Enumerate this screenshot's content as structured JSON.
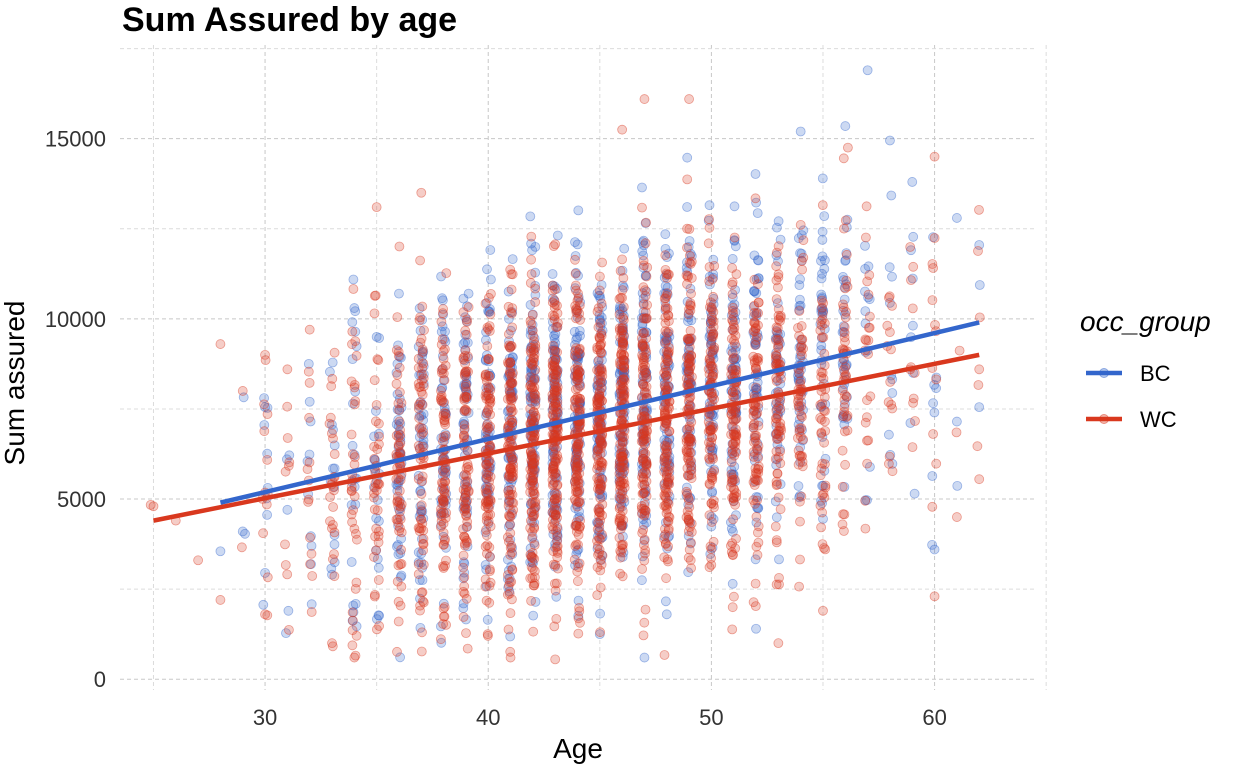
{
  "chart_data": {
    "type": "scatter",
    "title": "Sum Assured by age",
    "xlabel": "Age",
    "ylabel": "Sum assured",
    "xlim": [
      23.5,
      64.5
    ],
    "ylim": [
      -300,
      17600
    ],
    "x_ticks": [
      30,
      40,
      50,
      60
    ],
    "x_tick_labels": [
      "30",
      "40",
      "50",
      "60"
    ],
    "y_ticks": [
      0,
      5000,
      10000,
      15000
    ],
    "y_tick_labels": [
      "0",
      "5000",
      "10000",
      "15000"
    ],
    "grid": true,
    "legend": {
      "title": "occ_group",
      "placement": "right",
      "entries": [
        "BC",
        "WC"
      ]
    },
    "series": [
      {
        "name": "BC",
        "color": "#3366cc",
        "point_opacity": 0.25,
        "age_range": [
          28,
          62
        ],
        "trend": {
          "x": [
            28,
            62
          ],
          "y": [
            4900,
            9900
          ]
        },
        "points": [
          [
            28,
            3550
          ],
          [
            29,
            4100
          ],
          [
            30,
            2950
          ],
          [
            30,
            7550
          ],
          [
            31,
            4700
          ],
          [
            32,
            7700
          ],
          [
            33,
            2900
          ],
          [
            34,
            10300
          ],
          [
            35,
            9500
          ],
          [
            36,
            10700
          ],
          [
            57,
            16900
          ],
          [
            54,
            15200
          ],
          [
            56,
            15350
          ],
          [
            58,
            14950
          ],
          [
            61,
            12800
          ],
          [
            62,
            12050
          ],
          [
            62,
            7550
          ],
          [
            61,
            7150
          ],
          [
            60,
            3600
          ],
          [
            59,
            13800
          ],
          [
            47,
            600
          ],
          [
            45,
            1250
          ],
          [
            52,
            1400
          ],
          [
            48,
            1800
          ]
        ]
      },
      {
        "name": "WC",
        "color": "#d9381e",
        "point_opacity": 0.25,
        "age_range": [
          25,
          62
        ],
        "trend": {
          "x": [
            25,
            62
          ],
          "y": [
            4400,
            9000
          ]
        },
        "points": [
          [
            25,
            4800
          ],
          [
            26,
            4400
          ],
          [
            27,
            3300
          ],
          [
            28,
            9300
          ],
          [
            28,
            2200
          ],
          [
            29,
            8000
          ],
          [
            30,
            9000
          ],
          [
            30,
            1800
          ],
          [
            31,
            8600
          ],
          [
            32,
            9700
          ],
          [
            33,
            1000
          ],
          [
            34,
            600
          ],
          [
            35,
            13100
          ],
          [
            37,
            13500
          ],
          [
            47,
            16100
          ],
          [
            49,
            16100
          ],
          [
            46,
            15250
          ],
          [
            60,
            14500
          ],
          [
            62,
            8600
          ],
          [
            62,
            5550
          ],
          [
            61,
            4500
          ],
          [
            60,
            2300
          ],
          [
            55,
            1900
          ],
          [
            53,
            1000
          ],
          [
            41,
            600
          ],
          [
            43,
            550
          ]
        ]
      }
    ]
  }
}
